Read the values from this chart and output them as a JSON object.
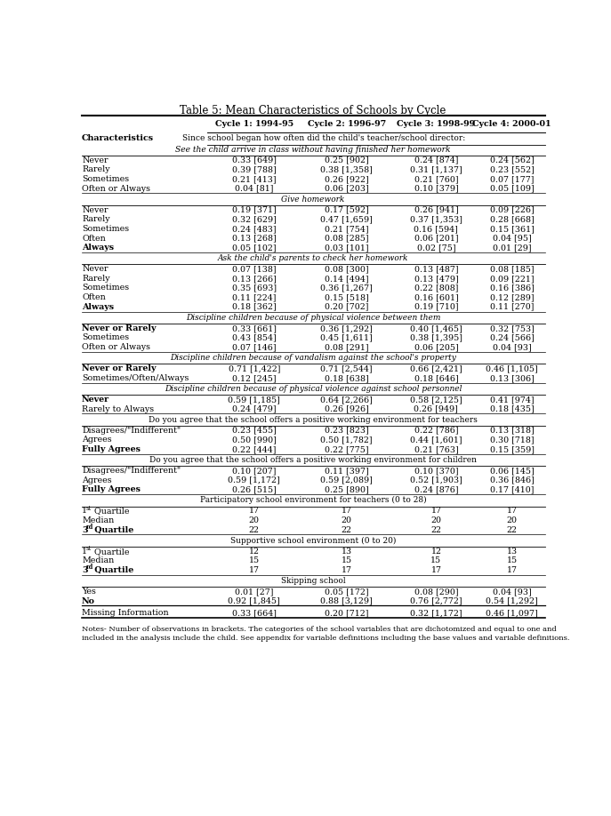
{
  "title": "Table 5: Mean Characteristics of Schools by Cycle",
  "col_headers": [
    "Cycle 1: 1994-95",
    "Cycle 2: 1996-97",
    "Cycle 3: 1998-99",
    "Cycle 4: 2000-01"
  ],
  "subheader1": "Since school began how often did the child's teacher/school director:",
  "subheader2": "See the child arrive in class without having finished her homework",
  "rows": [
    {
      "type": "data",
      "bold": false,
      "char": "Never",
      "vals": [
        "0.33 [649]",
        "0.25 [902]",
        "0.24 [874]",
        "0.24 [562]"
      ]
    },
    {
      "type": "data",
      "bold": false,
      "char": "Rarely",
      "vals": [
        "0.39 [788]",
        "0.38 [1,358]",
        "0.31 [1,137]",
        "0.23 [552]"
      ]
    },
    {
      "type": "data",
      "bold": false,
      "char": "Sometimes",
      "vals": [
        "0.21 [413]",
        "0.26 [922]",
        "0.21 [760]",
        "0.07 [177]"
      ]
    },
    {
      "type": "data",
      "bold": false,
      "char": "Often or Always",
      "vals": [
        "0.04 [81]",
        "0.06 [203]",
        "0.10 [379]",
        "0.05 [109]"
      ]
    },
    {
      "type": "section_italic",
      "text": "Give homework"
    },
    {
      "type": "data",
      "bold": false,
      "char": "Never",
      "vals": [
        "0.19 [371]",
        "0.17 [592]",
        "0.26 [941]",
        "0.09 [226]"
      ]
    },
    {
      "type": "data",
      "bold": false,
      "char": "Rarely",
      "vals": [
        "0.32 [629]",
        "0.47 [1,659]",
        "0.37 [1,353]",
        "0.28 [668]"
      ]
    },
    {
      "type": "data",
      "bold": false,
      "char": "Sometimes",
      "vals": [
        "0.24 [483]",
        "0.21 [754]",
        "0.16 [594]",
        "0.15 [361]"
      ]
    },
    {
      "type": "data",
      "bold": false,
      "char": "Often",
      "vals": [
        "0.13 [268]",
        "0.08 [285]",
        "0.06 [201]",
        "0.04 [95]"
      ]
    },
    {
      "type": "data",
      "bold": true,
      "char": "Always",
      "vals": [
        "0.05 [102]",
        "0.03 [101]",
        "0.02 [75]",
        "0.01 [29]"
      ]
    },
    {
      "type": "section_italic",
      "text": "Ask the child's parents to check her homework"
    },
    {
      "type": "data",
      "bold": false,
      "char": "Never",
      "vals": [
        "0.07 [138]",
        "0.08 [300]",
        "0.13 [487]",
        "0.08 [185]"
      ]
    },
    {
      "type": "data",
      "bold": false,
      "char": "Rarely",
      "vals": [
        "0.13 [266]",
        "0.14 [494]",
        "0.13 [479]",
        "0.09 [221]"
      ]
    },
    {
      "type": "data",
      "bold": false,
      "char": "Sometimes",
      "vals": [
        "0.35 [693]",
        "0.36 [1,267]",
        "0.22 [808]",
        "0.16 [386]"
      ]
    },
    {
      "type": "data",
      "bold": false,
      "char": "Often",
      "vals": [
        "0.11 [224]",
        "0.15 [518]",
        "0.16 [601]",
        "0.12 [289]"
      ]
    },
    {
      "type": "data",
      "bold": true,
      "char": "Always",
      "vals": [
        "0.18 [362]",
        "0.20 [702]",
        "0.19 [710]",
        "0.11 [270]"
      ]
    },
    {
      "type": "section_italic",
      "text": "Discipline children because of physical violence between them"
    },
    {
      "type": "data",
      "bold": true,
      "char": "Never or Rarely",
      "vals": [
        "0.33 [661]",
        "0.36 [1,292]",
        "0.40 [1,465]",
        "0.32 [753]"
      ]
    },
    {
      "type": "data",
      "bold": false,
      "char": "Sometimes",
      "vals": [
        "0.43 [854]",
        "0.45 [1,611]",
        "0.38 [1,395]",
        "0.24 [566]"
      ]
    },
    {
      "type": "data",
      "bold": false,
      "char": "Often or Always",
      "vals": [
        "0.07 [146]",
        "0.08 [291]",
        "0.06 [205]",
        "0.04 [93]"
      ]
    },
    {
      "type": "section_italic",
      "text": "Discipline children because of vandalism against the school's property"
    },
    {
      "type": "data",
      "bold": true,
      "char": "Never or Rarely",
      "vals": [
        "0.71 [1,422]",
        "0.71 [2,544]",
        "0.66 [2,421]",
        "0.46 [1,105]"
      ]
    },
    {
      "type": "data",
      "bold": false,
      "char": "Sometimes/Often/Always",
      "vals": [
        "0.12 [245]",
        "0.18 [638]",
        "0.18 [646]",
        "0.13 [306]"
      ]
    },
    {
      "type": "section_italic",
      "text": "Discipline children because of physical violence against school personnel"
    },
    {
      "type": "data",
      "bold": true,
      "char": "Never",
      "vals": [
        "0.59 [1,185]",
        "0.64 [2,266]",
        "0.58 [2,125]",
        "0.41 [974]"
      ]
    },
    {
      "type": "data",
      "bold": false,
      "char": "Rarely to Always",
      "vals": [
        "0.24 [479]",
        "0.26 [926]",
        "0.26 [949]",
        "0.18 [435]"
      ]
    },
    {
      "type": "section_normal",
      "text": "Do you agree that the school offers a positive working environment for teachers"
    },
    {
      "type": "data",
      "bold": false,
      "char": "Disagrees/\"Indifferent\"",
      "vals": [
        "0.23 [455]",
        "0.23 [823]",
        "0.22 [786]",
        "0.13 [318]"
      ]
    },
    {
      "type": "data",
      "bold": false,
      "char": "Agrees",
      "vals": [
        "0.50 [990]",
        "0.50 [1,782]",
        "0.44 [1,601]",
        "0.30 [718]"
      ]
    },
    {
      "type": "data",
      "bold": true,
      "char": "Fully Agrees",
      "vals": [
        "0.22 [444]",
        "0.22 [775]",
        "0.21 [763]",
        "0.15 [359]"
      ]
    },
    {
      "type": "section_normal",
      "text": "Do you agree that the school offers a positive working environment for children"
    },
    {
      "type": "data",
      "bold": false,
      "char": "Disagrees/\"Indifferent\"",
      "vals": [
        "0.10 [207]",
        "0.11 [397]",
        "0.10 [370]",
        "0.06 [145]"
      ]
    },
    {
      "type": "data",
      "bold": false,
      "char": "Agrees",
      "vals": [
        "0.59 [1,172]",
        "0.59 [2,089]",
        "0.52 [1,903]",
        "0.36 [846]"
      ]
    },
    {
      "type": "data",
      "bold": true,
      "char": "Fully Agrees",
      "vals": [
        "0.26 [515]",
        "0.25 [890]",
        "0.24 [876]",
        "0.17 [410]"
      ]
    },
    {
      "type": "section_normal",
      "text": "Participatory school environment for teachers (0 to 28)"
    },
    {
      "type": "data",
      "bold": false,
      "char": "1st Quartile",
      "vals": [
        "17",
        "17",
        "17",
        "17"
      ],
      "sup": "st"
    },
    {
      "type": "data",
      "bold": false,
      "char": "Median",
      "vals": [
        "20",
        "20",
        "20",
        "20"
      ]
    },
    {
      "type": "data",
      "bold": true,
      "char": "3rd Quartile",
      "vals": [
        "22",
        "22",
        "22",
        "22"
      ],
      "sup": "rd"
    },
    {
      "type": "section_normal",
      "text": "Supportive school environment (0 to 20)"
    },
    {
      "type": "data",
      "bold": false,
      "char": "1st Quartile",
      "vals": [
        "12",
        "13",
        "12",
        "13"
      ],
      "sup": "st"
    },
    {
      "type": "data",
      "bold": false,
      "char": "Median",
      "vals": [
        "15",
        "15",
        "15",
        "15"
      ]
    },
    {
      "type": "data",
      "bold": true,
      "char": "3rd Quartile",
      "vals": [
        "17",
        "17",
        "17",
        "17"
      ],
      "sup": "rd"
    },
    {
      "type": "section_normal",
      "text": "Skipping school"
    },
    {
      "type": "data",
      "bold": false,
      "char": "Yes",
      "vals": [
        "0.01 [27]",
        "0.05 [172]",
        "0.08 [290]",
        "0.04 [93]"
      ]
    },
    {
      "type": "data",
      "bold": true,
      "char": "No",
      "vals": [
        "0.92 [1,845]",
        "0.88 [3,129]",
        "0.76 [2,772]",
        "0.54 [1,292]"
      ]
    },
    {
      "type": "thick_sep"
    },
    {
      "type": "data",
      "bold": false,
      "char": "Missing Information",
      "vals": [
        "0.33 [664]",
        "0.20 [712]",
        "0.32 [1,172]",
        "0.46 [1,097]"
      ]
    }
  ],
  "footnote": "Notes- Number of observations in brackets. The categories of the school variables that are dichotomized and equal to one and\nincluded in the analysis include the child. See appendix for variable definitions including the base values and variable definitions."
}
